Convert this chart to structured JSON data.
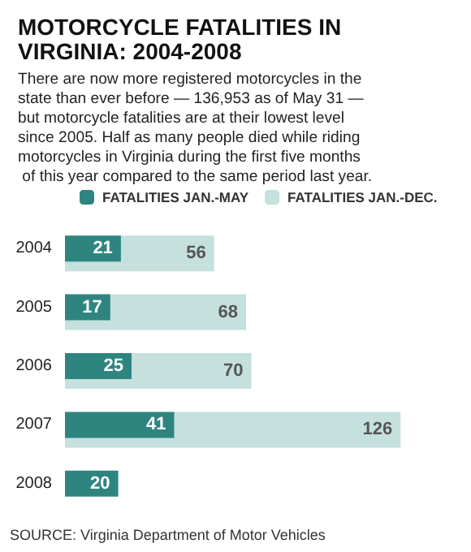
{
  "chart_data": {
    "type": "bar",
    "orientation": "horizontal",
    "title": "MOTORCYCLE FATALITIES IN VIRGINIA: 2004-2008",
    "subtitle": "There are now more registered motorcycles in the state than ever before — 136,953 as of May 31 — but motorcycle fatalities are at their lowest level since 2005. Half as many people died while riding motorcycles in Virginia during the first five months of this year compared to the same period last year.",
    "categories": [
      "2004",
      "2005",
      "2006",
      "2007",
      "2008"
    ],
    "series": [
      {
        "name": "FATALITIES JAN.-DEC.",
        "color": "#c5e0dd",
        "values": [
          56,
          68,
          70,
          126,
          null
        ]
      },
      {
        "name": "FATALITIES JAN.-MAY",
        "color": "#2e8580",
        "values": [
          21,
          17,
          25,
          41,
          20
        ]
      }
    ],
    "data_labels": true,
    "legend": "top",
    "annotations": [
      "SOURCE: Virginia Department of Motor Vehicles"
    ]
  }
}
